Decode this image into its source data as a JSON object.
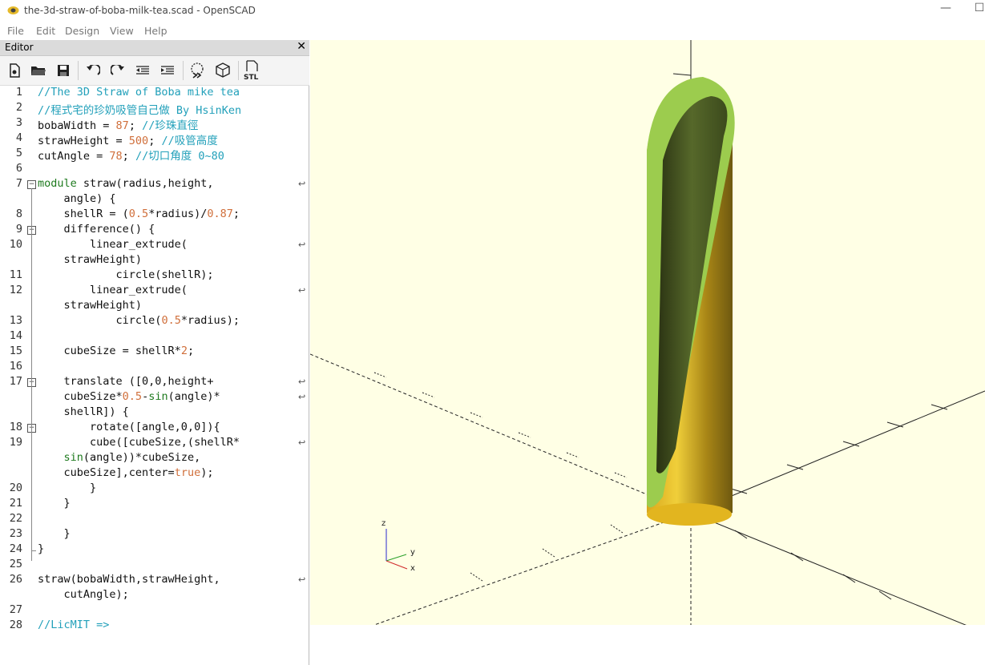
{
  "window": {
    "title": "the-3d-straw-of-boba-milk-tea.scad - OpenSCAD",
    "minimize_glyph": "—",
    "maximize_glyph": "☐"
  },
  "menu": [
    "File",
    "Edit",
    "Design",
    "View",
    "Help"
  ],
  "editor": {
    "title": "Editor",
    "close_glyph": "✕",
    "toolbar": [
      {
        "name": "new-file-icon"
      },
      {
        "name": "open-file-icon"
      },
      {
        "name": "save-icon"
      },
      {
        "name": "undo-icon"
      },
      {
        "name": "redo-icon"
      },
      {
        "name": "unindent-icon"
      },
      {
        "name": "indent-icon"
      },
      {
        "name": "preview-icon"
      },
      {
        "name": "render-icon"
      },
      {
        "name": "export-stl-icon",
        "label": "STL"
      }
    ],
    "code_lines": [
      {
        "n": "1",
        "segs": [
          [
            "cm",
            "//The 3D Straw of Boba mike tea"
          ]
        ]
      },
      {
        "n": "2",
        "segs": [
          [
            "cm",
            "//程式宅的珍奶吸管自己做 By HsinKen"
          ]
        ]
      },
      {
        "n": "3",
        "segs": [
          [
            "",
            "bobaWidth = "
          ],
          [
            "nm",
            "87"
          ],
          [
            "",
            "; "
          ],
          [
            "cm",
            "//珍珠直徑"
          ]
        ]
      },
      {
        "n": "4",
        "segs": [
          [
            "",
            "strawHeight = "
          ],
          [
            "nm",
            "500"
          ],
          [
            "",
            "; "
          ],
          [
            "cm",
            "//吸管高度"
          ]
        ]
      },
      {
        "n": "5",
        "segs": [
          [
            "",
            "cutAngle = "
          ],
          [
            "nm",
            "78"
          ],
          [
            "",
            "; "
          ],
          [
            "cm",
            "//切口角度 0~80"
          ]
        ]
      },
      {
        "n": "6",
        "segs": []
      },
      {
        "n": "7",
        "segs": [
          [
            "kw",
            "module"
          ],
          [
            "",
            " straw(radius,height,"
          ]
        ],
        "fold": true,
        "wrap": true
      },
      {
        "n": "",
        "segs": [
          [
            "",
            "    angle) {"
          ]
        ]
      },
      {
        "n": "8",
        "segs": [
          [
            "",
            "    shellR = ("
          ],
          [
            "nm",
            "0.5"
          ],
          [
            "",
            "*radius)/"
          ],
          [
            "nm",
            "0.87"
          ],
          [
            "",
            ";"
          ]
        ]
      },
      {
        "n": "9",
        "segs": [
          [
            "",
            "    difference() {"
          ]
        ],
        "fold": true
      },
      {
        "n": "10",
        "segs": [
          [
            "",
            "        linear_extrude("
          ]
        ],
        "wrap": true
      },
      {
        "n": "",
        "segs": [
          [
            "",
            "    strawHeight)"
          ]
        ]
      },
      {
        "n": "11",
        "segs": [
          [
            "",
            "            circle(shellR);"
          ]
        ]
      },
      {
        "n": "12",
        "segs": [
          [
            "",
            "        linear_extrude("
          ]
        ],
        "wrap": true
      },
      {
        "n": "",
        "segs": [
          [
            "",
            "    strawHeight)"
          ]
        ]
      },
      {
        "n": "13",
        "segs": [
          [
            "",
            "            circle("
          ],
          [
            "nm",
            "0.5"
          ],
          [
            "",
            "*radius);"
          ]
        ]
      },
      {
        "n": "14",
        "segs": []
      },
      {
        "n": "15",
        "segs": [
          [
            "",
            "    cubeSize = shellR*"
          ],
          [
            "nm",
            "2"
          ],
          [
            "",
            ";"
          ]
        ]
      },
      {
        "n": "16",
        "segs": []
      },
      {
        "n": "17",
        "segs": [
          [
            "",
            "    translate ([0,0,height+"
          ]
        ],
        "fold": true,
        "wrap": true
      },
      {
        "n": "",
        "segs": [
          [
            "",
            "    cubeSize*"
          ],
          [
            "nm",
            "0.5"
          ],
          [
            "",
            "-"
          ],
          [
            "kw",
            "sin"
          ],
          [
            "",
            "(angle)*"
          ]
        ],
        "wrap": true
      },
      {
        "n": "",
        "segs": [
          [
            "",
            "    shellR]) {"
          ]
        ]
      },
      {
        "n": "18",
        "segs": [
          [
            "",
            "        rotate([angle,0,0]){"
          ]
        ],
        "fold": true
      },
      {
        "n": "19",
        "segs": [
          [
            "",
            "        cube([cubeSize,(shellR*"
          ]
        ],
        "wrap": true
      },
      {
        "n": "",
        "segs": [
          [
            "",
            "    "
          ],
          [
            "kw",
            "sin"
          ],
          [
            "",
            "(angle))*cubeSize,"
          ]
        ]
      },
      {
        "n": "",
        "segs": [
          [
            "",
            "    cubeSize],center="
          ],
          [
            "nm",
            "true"
          ],
          [
            "",
            ");"
          ]
        ]
      },
      {
        "n": "20",
        "segs": [
          [
            "",
            "        }"
          ]
        ]
      },
      {
        "n": "21",
        "segs": [
          [
            "",
            "    }"
          ]
        ]
      },
      {
        "n": "22",
        "segs": []
      },
      {
        "n": "23",
        "segs": [
          [
            "",
            "    }"
          ]
        ]
      },
      {
        "n": "24",
        "segs": [
          [
            "",
            "}"
          ]
        ]
      },
      {
        "n": "25",
        "segs": []
      },
      {
        "n": "26",
        "segs": [
          [
            "",
            "straw(bobaWidth,strawHeight,"
          ]
        ],
        "wrap": true
      },
      {
        "n": "",
        "segs": [
          [
            "",
            "    cutAngle);"
          ]
        ]
      },
      {
        "n": "27",
        "segs": []
      },
      {
        "n": "28",
        "segs": [
          [
            "cm",
            "//LicMIT =>"
          ]
        ]
      }
    ]
  },
  "viewport": {
    "background": "#ffffe5",
    "axis_labels": {
      "z": "z",
      "y": "y",
      "x": "x"
    },
    "colors": {
      "straw_outer": "#e8c224",
      "straw_rim": "#a8cf58",
      "straw_inner": "#3c4a1c",
      "axis": "#222222"
    }
  }
}
